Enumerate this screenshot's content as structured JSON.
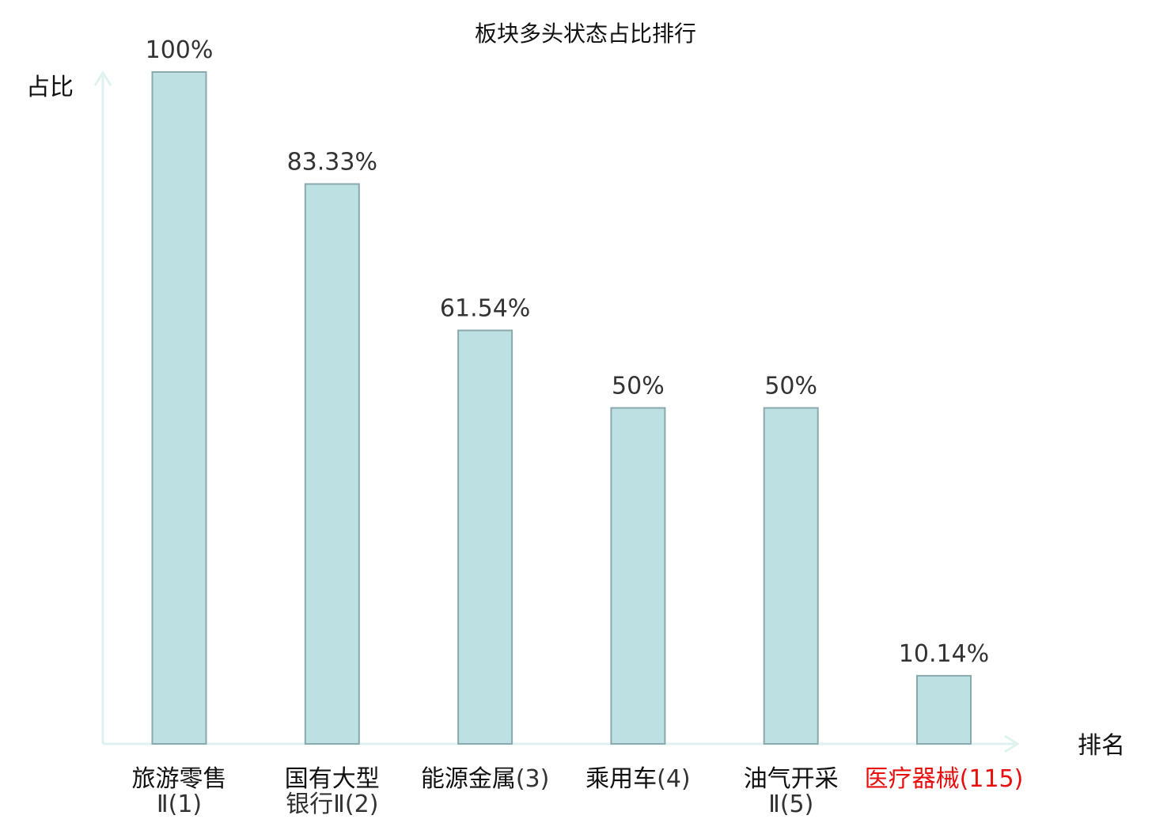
{
  "chart_data": {
    "type": "bar",
    "title": "板块多头状态占比排行",
    "ylabel": "占比",
    "xlabel": "排名",
    "ylim": [
      0,
      100
    ],
    "grid": false,
    "categories": [
      {
        "name_lines": [
          "旅游零售"
        ],
        "suffix_line": "Ⅱ(1)",
        "highlight": false
      },
      {
        "name_lines": [
          "国有大型"
        ],
        "suffix_line": "银行Ⅱ(2)",
        "highlight": false
      },
      {
        "name_lines": [
          "能源金属"
        ],
        "suffix_inline": "(3)",
        "highlight": false
      },
      {
        "name_lines": [
          "乘用车"
        ],
        "suffix_inline": "(4)",
        "highlight": false
      },
      {
        "name_lines": [
          "油气开采"
        ],
        "suffix_line": "Ⅱ(5)",
        "highlight": false
      },
      {
        "name_lines": [
          "医疗器械"
        ],
        "suffix_inline": "(115)",
        "highlight": true
      }
    ],
    "values": [
      100,
      83.33,
      61.54,
      50,
      50,
      10.14
    ],
    "value_labels": [
      "100%",
      "83.33%",
      "61.54%",
      "50%",
      "50%",
      "10.14%"
    ],
    "colors": {
      "bar_fill": "#bde0e3",
      "bar_stroke": "#8aa9ac",
      "axis": "#dff2ef",
      "highlight_text": "#e8100f"
    }
  }
}
